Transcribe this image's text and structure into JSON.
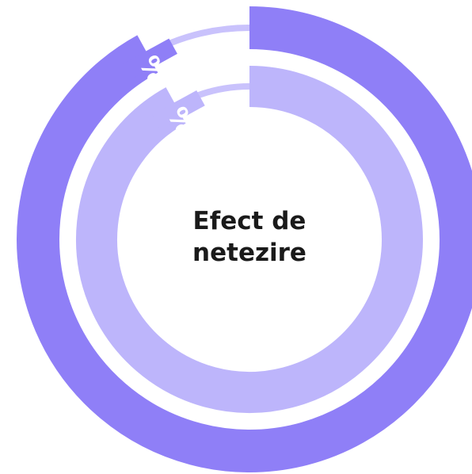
{
  "chart_data": {
    "type": "radial",
    "title": "Efect de netezire",
    "max": 100,
    "track_color": "#c9c2fc",
    "series": [
      {
        "color": "#8f7ff7",
        "values": [
          92
        ],
        "value_labels": [
          "92%"
        ]
      },
      {
        "color": "#bdb5fb",
        "values": [
          92
        ],
        "value_labels": [
          "92%"
        ]
      }
    ]
  }
}
